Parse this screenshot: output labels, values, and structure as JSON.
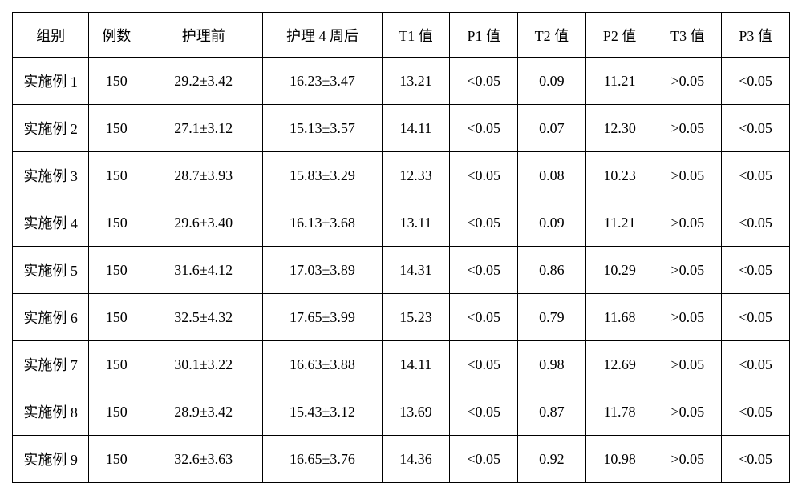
{
  "table": {
    "headers": [
      "组别",
      "例数",
      "护理前",
      "护理 4 周后",
      "T1 值",
      "P1 值",
      "T2 值",
      "P2 值",
      "T3 值",
      "P3 值"
    ],
    "rows": [
      [
        "实施例 1",
        "150",
        "29.2±3.42",
        "16.23±3.47",
        "13.21",
        "<0.05",
        "0.09",
        "11.21",
        ">0.05",
        "<0.05"
      ],
      [
        "实施例 2",
        "150",
        "27.1±3.12",
        "15.13±3.57",
        "14.11",
        "<0.05",
        "0.07",
        "12.30",
        ">0.05",
        "<0.05"
      ],
      [
        "实施例 3",
        "150",
        "28.7±3.93",
        "15.83±3.29",
        "12.33",
        "<0.05",
        "0.08",
        "10.23",
        ">0.05",
        "<0.05"
      ],
      [
        "实施例 4",
        "150",
        "29.6±3.40",
        "16.13±3.68",
        "13.11",
        "<0.05",
        "0.09",
        "11.21",
        ">0.05",
        "<0.05"
      ],
      [
        "实施例 5",
        "150",
        "31.6±4.12",
        "17.03±3.89",
        "14.31",
        "<0.05",
        "0.86",
        "10.29",
        ">0.05",
        "<0.05"
      ],
      [
        "实施例 6",
        "150",
        "32.5±4.32",
        "17.65±3.99",
        "15.23",
        "<0.05",
        "0.79",
        "11.68",
        ">0.05",
        "<0.05"
      ],
      [
        "实施例 7",
        "150",
        "30.1±3.22",
        "16.63±3.88",
        "14.11",
        "<0.05",
        "0.98",
        "12.69",
        ">0.05",
        "<0.05"
      ],
      [
        "实施例 8",
        "150",
        "28.9±3.42",
        "15.43±3.12",
        "13.69",
        "<0.05",
        "0.87",
        "11.78",
        ">0.05",
        "<0.05"
      ],
      [
        "实施例 9",
        "150",
        "32.6±3.63",
        "16.65±3.76",
        "14.36",
        "<0.05",
        "0.92",
        "10.98",
        ">0.05",
        "<0.05"
      ]
    ],
    "column_classes": [
      "col-group",
      "col-count",
      "col-before",
      "col-after",
      "col-val",
      "col-val",
      "col-val",
      "col-val",
      "col-val",
      "col-val"
    ],
    "border_color": "#000000",
    "background_color": "#ffffff",
    "text_color": "#000000",
    "font_size": 18
  }
}
